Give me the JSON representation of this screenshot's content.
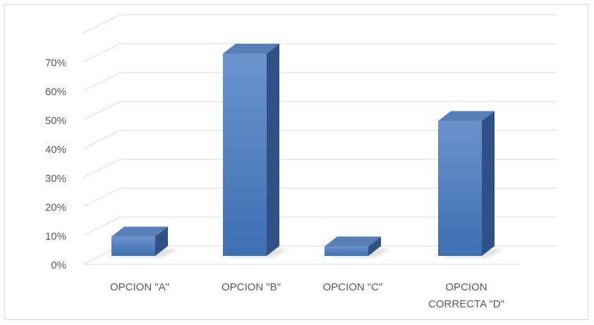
{
  "chart_data": {
    "type": "bar",
    "categories": [
      [
        "OPCION \"A\""
      ],
      [
        "OPCION \"B\""
      ],
      [
        "OPCION \"C\""
      ],
      [
        "OPCION",
        "CORRECTA \"D\""
      ]
    ],
    "values": [
      6.7,
      70,
      3.3,
      46.7
    ],
    "ylim": [
      0,
      70
    ],
    "yticks": [
      "0%",
      "10%",
      "20%",
      "30%",
      "40%",
      "50%",
      "60%",
      "70%"
    ],
    "title": "",
    "xlabel": "",
    "ylabel": "",
    "grid": true,
    "legend": "none",
    "colors": {
      "bar_front_top": "#6c93cc",
      "bar_front_bottom": "#3d6fb3",
      "bar_side": "#2f5185",
      "bar_top": "#5a7fb8",
      "gridline": "#d9d9d9",
      "shadow": "#c8c8c8"
    }
  }
}
